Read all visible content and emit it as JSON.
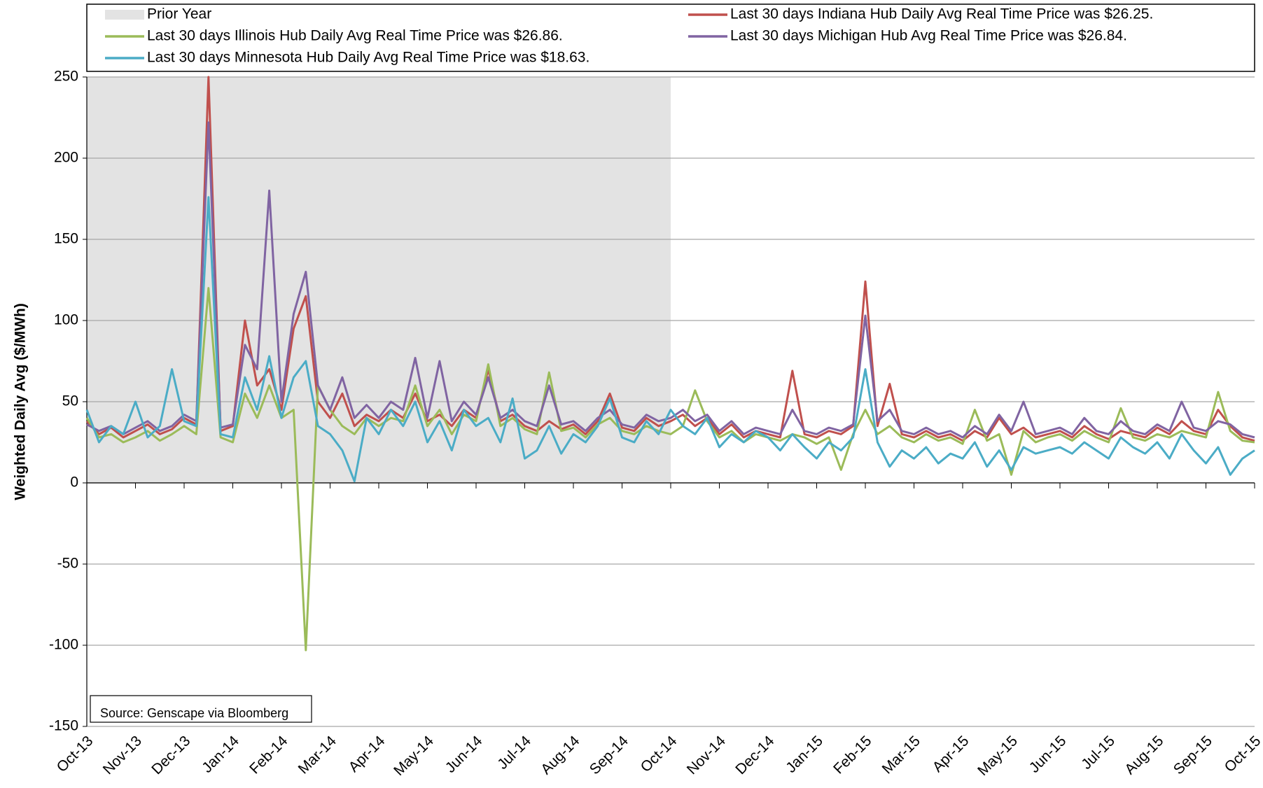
{
  "chart_data": {
    "type": "line",
    "y_label": "Weighted Daily Avg ($/MWh)",
    "annotation": "Source: Genscape via Bloomberg",
    "shaded_region": {
      "label": "Prior Year",
      "x": [
        0,
        12
      ],
      "color": "#e3e3e3"
    },
    "x": [
      0,
      0.25,
      0.5,
      0.75,
      1,
      1.25,
      1.5,
      1.75,
      2,
      2.25,
      2.5,
      2.75,
      3,
      3.25,
      3.5,
      3.75,
      4,
      4.25,
      4.5,
      4.75,
      5,
      5.25,
      5.5,
      5.75,
      6,
      6.25,
      6.5,
      6.75,
      7,
      7.25,
      7.5,
      7.75,
      8,
      8.25,
      8.5,
      8.75,
      9,
      9.25,
      9.5,
      9.75,
      10,
      10.25,
      10.5,
      10.75,
      11,
      11.25,
      11.5,
      11.75,
      12,
      12.25,
      12.5,
      12.75,
      13,
      13.25,
      13.5,
      13.75,
      14,
      14.25,
      14.5,
      14.75,
      15,
      15.25,
      15.5,
      15.75,
      16,
      16.25,
      16.5,
      16.75,
      17,
      17.25,
      17.5,
      17.75,
      18,
      18.25,
      18.5,
      18.75,
      19,
      19.25,
      19.5,
      19.75,
      20,
      20.25,
      20.5,
      20.75,
      21,
      21.25,
      21.5,
      21.75,
      22,
      22.25,
      22.5,
      22.75,
      23,
      23.25,
      23.5,
      23.75,
      24
    ],
    "xlim": [
      0,
      24
    ],
    "xticks": [
      {
        "value": 0,
        "label": "Oct-13"
      },
      {
        "value": 1,
        "label": "Nov-13"
      },
      {
        "value": 2,
        "label": "Dec-13"
      },
      {
        "value": 3,
        "label": "Jan-14"
      },
      {
        "value": 4,
        "label": "Feb-14"
      },
      {
        "value": 5,
        "label": "Mar-14"
      },
      {
        "value": 6,
        "label": "Apr-14"
      },
      {
        "value": 7,
        "label": "May-14"
      },
      {
        "value": 8,
        "label": "Jun-14"
      },
      {
        "value": 9,
        "label": "Jul-14"
      },
      {
        "value": 10,
        "label": "Aug-14"
      },
      {
        "value": 11,
        "label": "Sep-14"
      },
      {
        "value": 12,
        "label": "Oct-14"
      },
      {
        "value": 13,
        "label": "Nov-14"
      },
      {
        "value": 14,
        "label": "Dec-14"
      },
      {
        "value": 15,
        "label": "Jan-15"
      },
      {
        "value": 16,
        "label": "Feb-15"
      },
      {
        "value": 17,
        "label": "Mar-15"
      },
      {
        "value": 18,
        "label": "Apr-15"
      },
      {
        "value": 19,
        "label": "May-15"
      },
      {
        "value": 20,
        "label": "Jun-15"
      },
      {
        "value": 21,
        "label": "Jul-15"
      },
      {
        "value": 22,
        "label": "Aug-15"
      },
      {
        "value": 23,
        "label": "Sep-15"
      },
      {
        "value": 24,
        "label": "Oct-15"
      }
    ],
    "ylim": [
      -150,
      250
    ],
    "yticks": [
      -150,
      -100,
      -50,
      0,
      50,
      100,
      150,
      200,
      250
    ],
    "grid": true,
    "series": [
      {
        "name": "Last 30 days Indiana Hub Daily Avg Real Time Price was $26.25.",
        "color": "#c0504d",
        "values": [
          38,
          30,
          34,
          28,
          32,
          36,
          30,
          33,
          40,
          36,
          250,
          32,
          35,
          100,
          60,
          70,
          45,
          95,
          115,
          50,
          40,
          55,
          35,
          42,
          38,
          45,
          40,
          55,
          38,
          42,
          35,
          45,
          40,
          70,
          38,
          42,
          35,
          32,
          38,
          33,
          36,
          30,
          38,
          55,
          34,
          32,
          40,
          35,
          38,
          42,
          35,
          40,
          30,
          36,
          28,
          32,
          30,
          28,
          69,
          30,
          28,
          32,
          30,
          35,
          124,
          35,
          61,
          30,
          28,
          32,
          28,
          30,
          26,
          32,
          28,
          40,
          30,
          34,
          28,
          30,
          32,
          28,
          35,
          30,
          27,
          32,
          30,
          28,
          34,
          30,
          38,
          32,
          30,
          45,
          35,
          28,
          26
        ]
      },
      {
        "name": "Last 30 days Illinois Hub Daily Avg Real Time Price was $26.86.",
        "color": "#9bbb59",
        "values": [
          40,
          28,
          30,
          25,
          28,
          32,
          26,
          30,
          35,
          30,
          120,
          28,
          25,
          55,
          40,
          60,
          40,
          45,
          -103,
          60,
          45,
          35,
          30,
          40,
          35,
          40,
          38,
          60,
          35,
          45,
          30,
          42,
          38,
          73,
          35,
          40,
          33,
          30,
          68,
          32,
          34,
          28,
          36,
          40,
          32,
          30,
          35,
          32,
          30,
          35,
          57,
          38,
          28,
          32,
          25,
          30,
          28,
          26,
          30,
          28,
          24,
          28,
          8,
          30,
          45,
          30,
          35,
          28,
          25,
          30,
          26,
          28,
          24,
          45,
          26,
          30,
          5,
          32,
          25,
          28,
          30,
          26,
          32,
          28,
          25,
          46,
          28,
          26,
          30,
          28,
          32,
          30,
          28,
          56,
          32,
          26,
          25
        ]
      },
      {
        "name": "Last 30 days Michigan Hub Avg Real Time Price was $26.84.",
        "color": "#8064a2",
        "values": [
          36,
          32,
          35,
          30,
          34,
          38,
          32,
          35,
          42,
          38,
          222,
          34,
          36,
          85,
          70,
          180,
          50,
          104,
          130,
          60,
          45,
          65,
          40,
          48,
          40,
          50,
          45,
          77,
          40,
          75,
          38,
          50,
          42,
          65,
          40,
          45,
          38,
          35,
          60,
          36,
          38,
          32,
          40,
          45,
          36,
          34,
          42,
          38,
          40,
          45,
          38,
          42,
          32,
          38,
          30,
          34,
          32,
          30,
          45,
          32,
          30,
          34,
          32,
          36,
          103,
          38,
          45,
          32,
          30,
          34,
          30,
          32,
          28,
          35,
          30,
          42,
          32,
          50,
          30,
          32,
          34,
          30,
          40,
          32,
          30,
          38,
          32,
          30,
          36,
          32,
          50,
          34,
          32,
          38,
          36,
          30,
          28
        ]
      },
      {
        "name": "Last 30 days Minnesota Hub Daily Avg Real Time Price was $18.63.",
        "color": "#4bacc6",
        "values": [
          45,
          25,
          35,
          30,
          50,
          28,
          35,
          70,
          38,
          35,
          176,
          30,
          28,
          65,
          45,
          78,
          40,
          65,
          75,
          35,
          30,
          20,
          1,
          40,
          30,
          45,
          35,
          50,
          25,
          38,
          20,
          45,
          35,
          40,
          25,
          52,
          15,
          20,
          35,
          18,
          30,
          25,
          35,
          52,
          28,
          25,
          38,
          30,
          45,
          35,
          30,
          40,
          22,
          30,
          25,
          32,
          28,
          20,
          30,
          22,
          15,
          25,
          20,
          28,
          70,
          25,
          10,
          20,
          15,
          22,
          12,
          18,
          15,
          25,
          10,
          20,
          8,
          22,
          18,
          20,
          22,
          18,
          25,
          20,
          15,
          28,
          22,
          18,
          25,
          15,
          30,
          20,
          12,
          22,
          5,
          15,
          20
        ]
      }
    ]
  }
}
